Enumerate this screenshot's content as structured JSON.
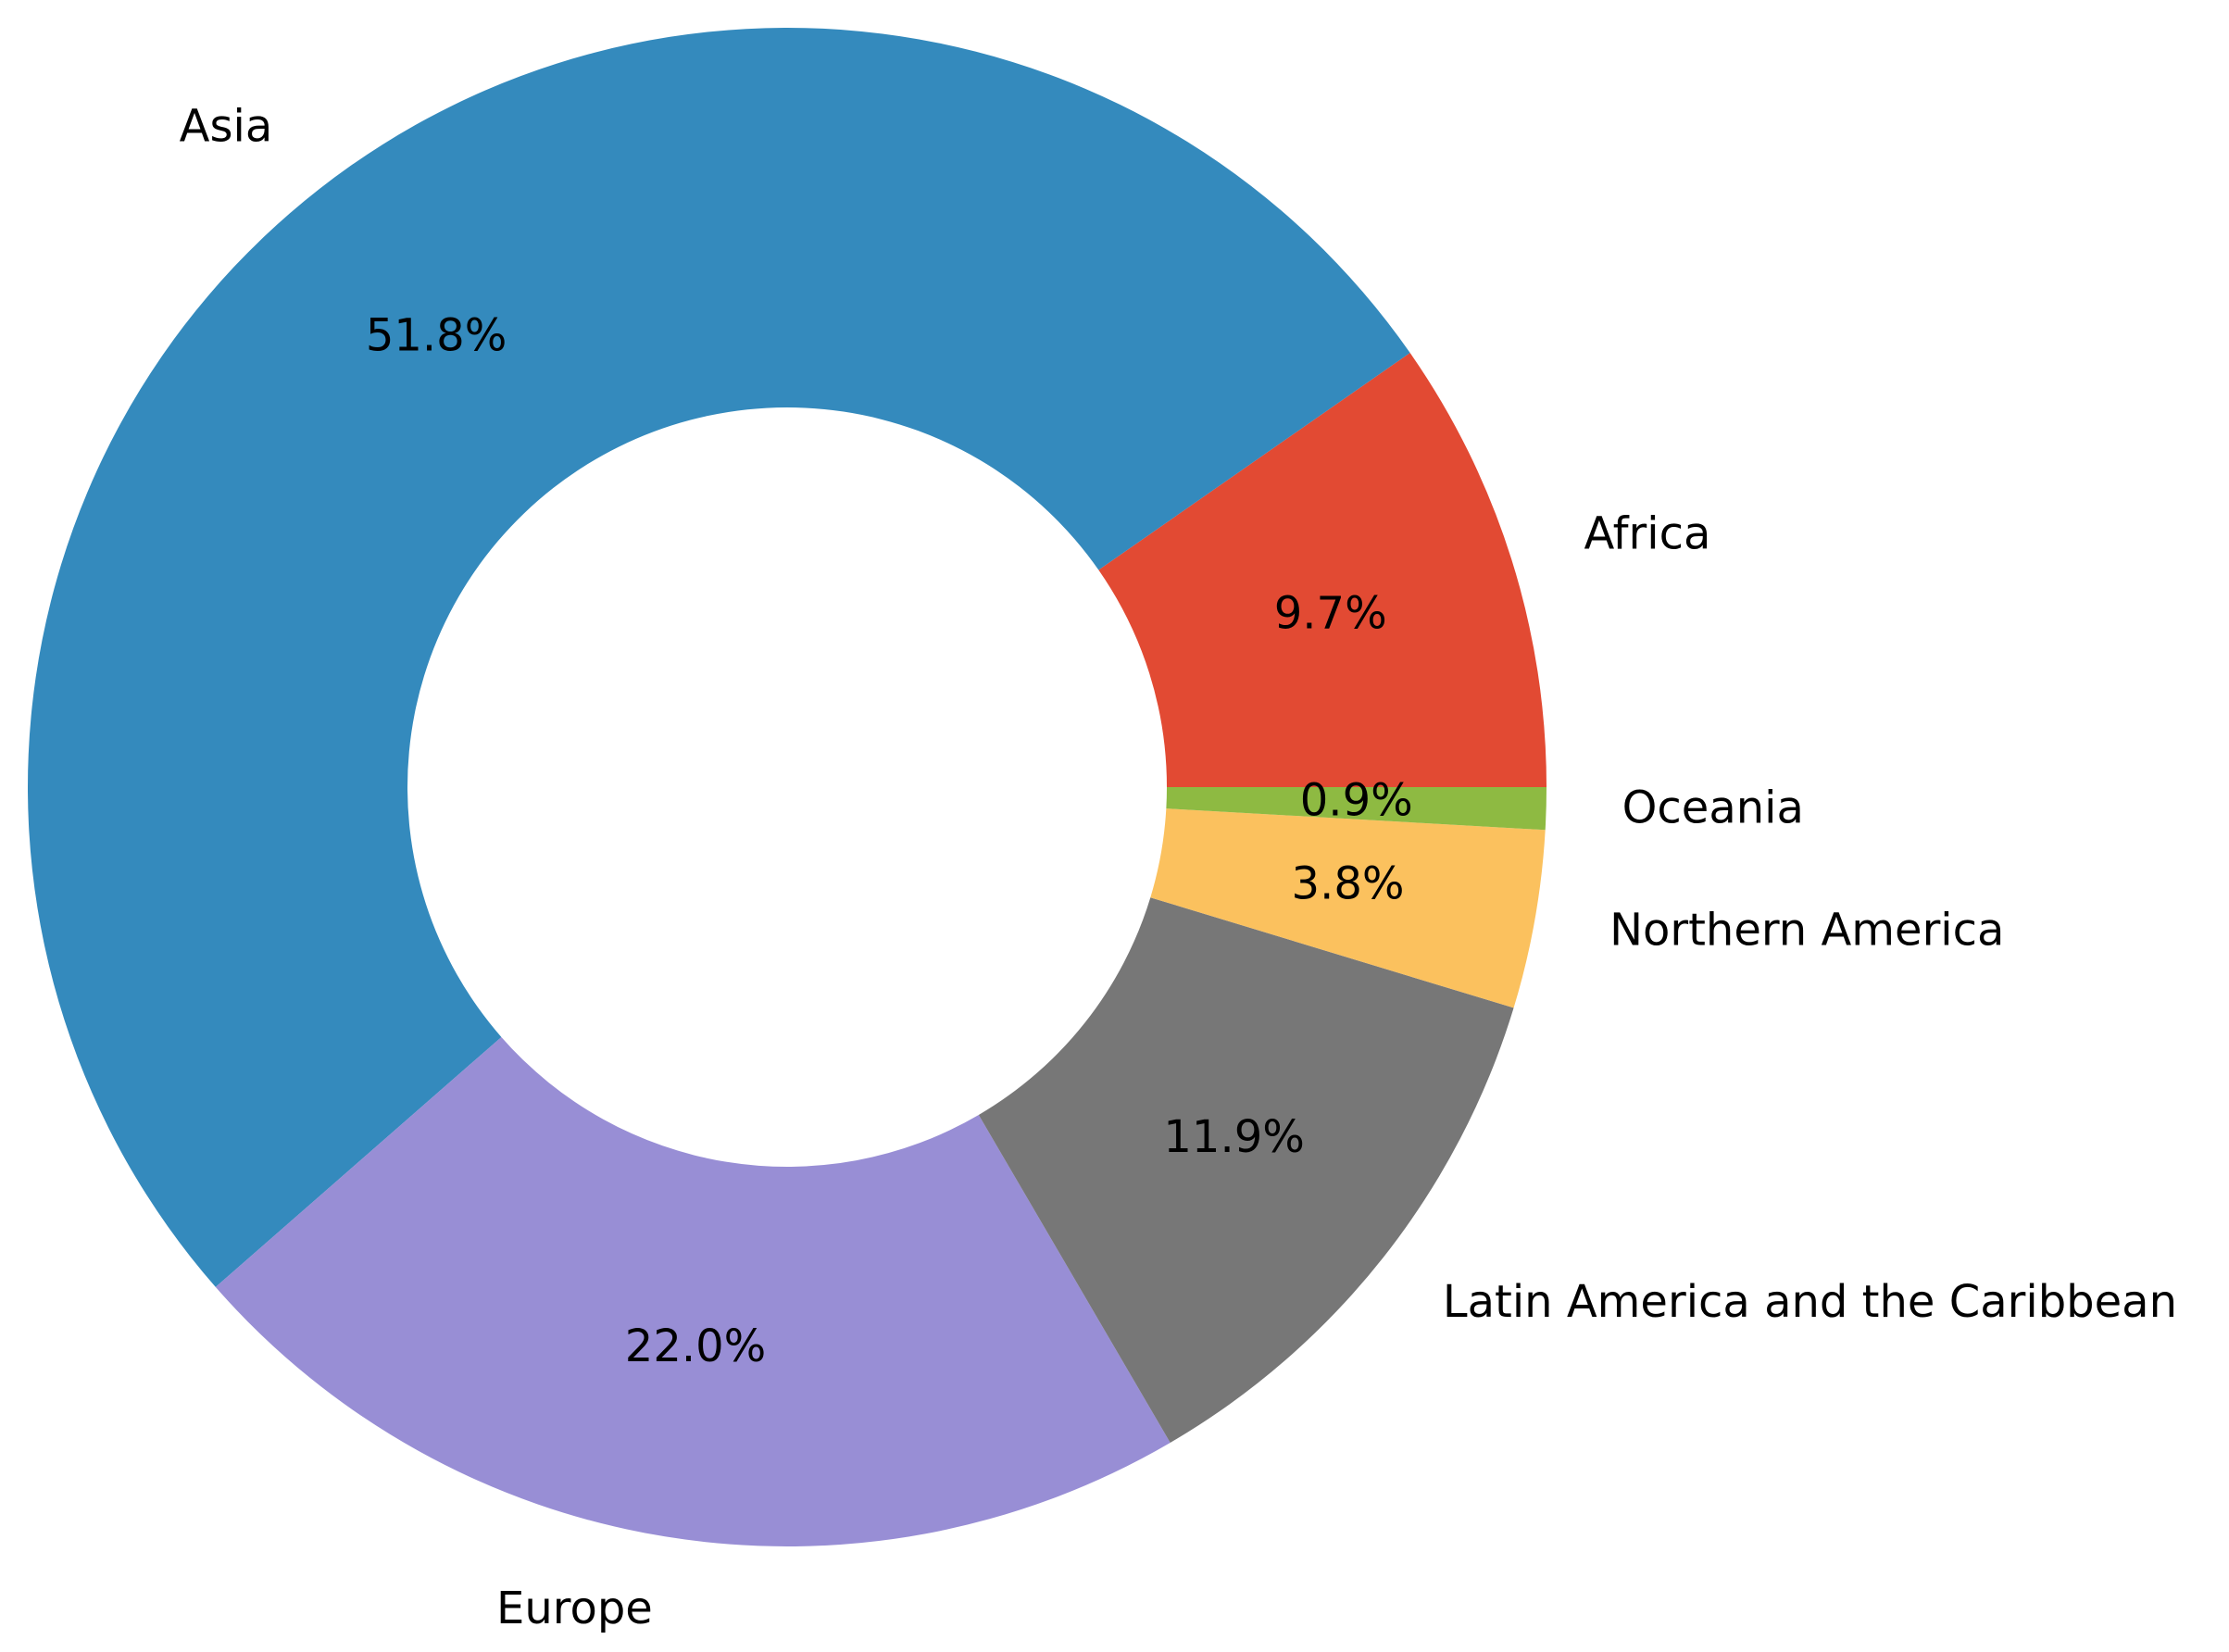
{
  "chart_data": {
    "type": "pie",
    "variant": "donut",
    "title": "",
    "slices": [
      {
        "label": "Africa",
        "value": 9.7,
        "pct_label": "9.7%",
        "color": "#e24a33"
      },
      {
        "label": "Asia",
        "value": 51.8,
        "pct_label": "51.8%",
        "color": "#348abd"
      },
      {
        "label": "Europe",
        "value": 22.0,
        "pct_label": "22.0%",
        "color": "#988ed5"
      },
      {
        "label": "Latin America and the Caribbean",
        "value": 11.9,
        "pct_label": "11.9%",
        "color": "#777777"
      },
      {
        "label": "Northern America",
        "value": 3.8,
        "pct_label": "3.8%",
        "color": "#fbc15e"
      },
      {
        "label": "Oceania",
        "value": 0.9,
        "pct_label": "0.9%",
        "color": "#8eba42"
      }
    ],
    "start_angle_deg": 0,
    "direction": "counterclockwise",
    "legend": "none"
  }
}
